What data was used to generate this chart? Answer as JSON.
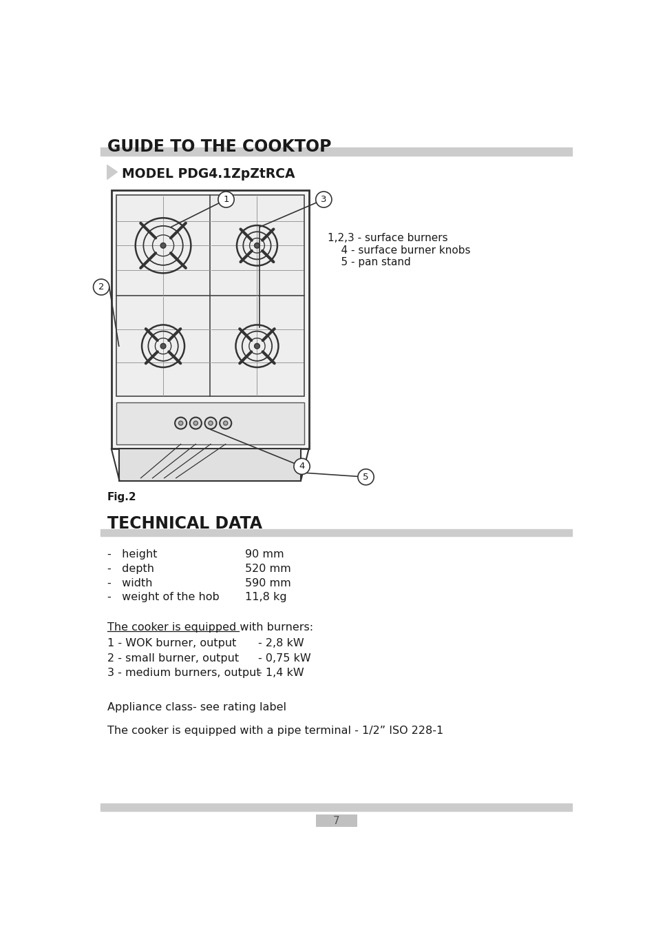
{
  "page_title": "GUIDE TO THE COOKTOP",
  "section1_label": "MODEL PDG4.1ZpZtRCA",
  "fig_label": "Fig.2",
  "legend_items": [
    "1,2,3 - surface burners",
    "    4 - surface burner knobs",
    "    5 - pan stand"
  ],
  "section2_title": "TECHNICAL DATA",
  "specs": [
    [
      "-   height",
      "90 mm"
    ],
    [
      "-   depth",
      "520 mm"
    ],
    [
      "-   width",
      "590 mm"
    ],
    [
      "-   weight of the hob",
      "11,8 kg"
    ]
  ],
  "burner_header": "The cooker is equipped with burners:",
  "burners": [
    [
      "1 - WOK burner, output",
      "- 2,8 kW"
    ],
    [
      "2 - small burner, output",
      "- 0,75 kW"
    ],
    [
      "3 - medium burners, output",
      "- 1,4 kW"
    ]
  ],
  "appliance_class": "Appliance class- see rating label",
  "pipe_terminal": "The cooker is equipped with a pipe terminal - 1/2” ISO 228-1",
  "page_number": "7",
  "bg_color": "#ffffff",
  "gray_bar_color": "#cccccc",
  "text_color": "#1a1a1a",
  "light_gray": "#c0c0c0"
}
